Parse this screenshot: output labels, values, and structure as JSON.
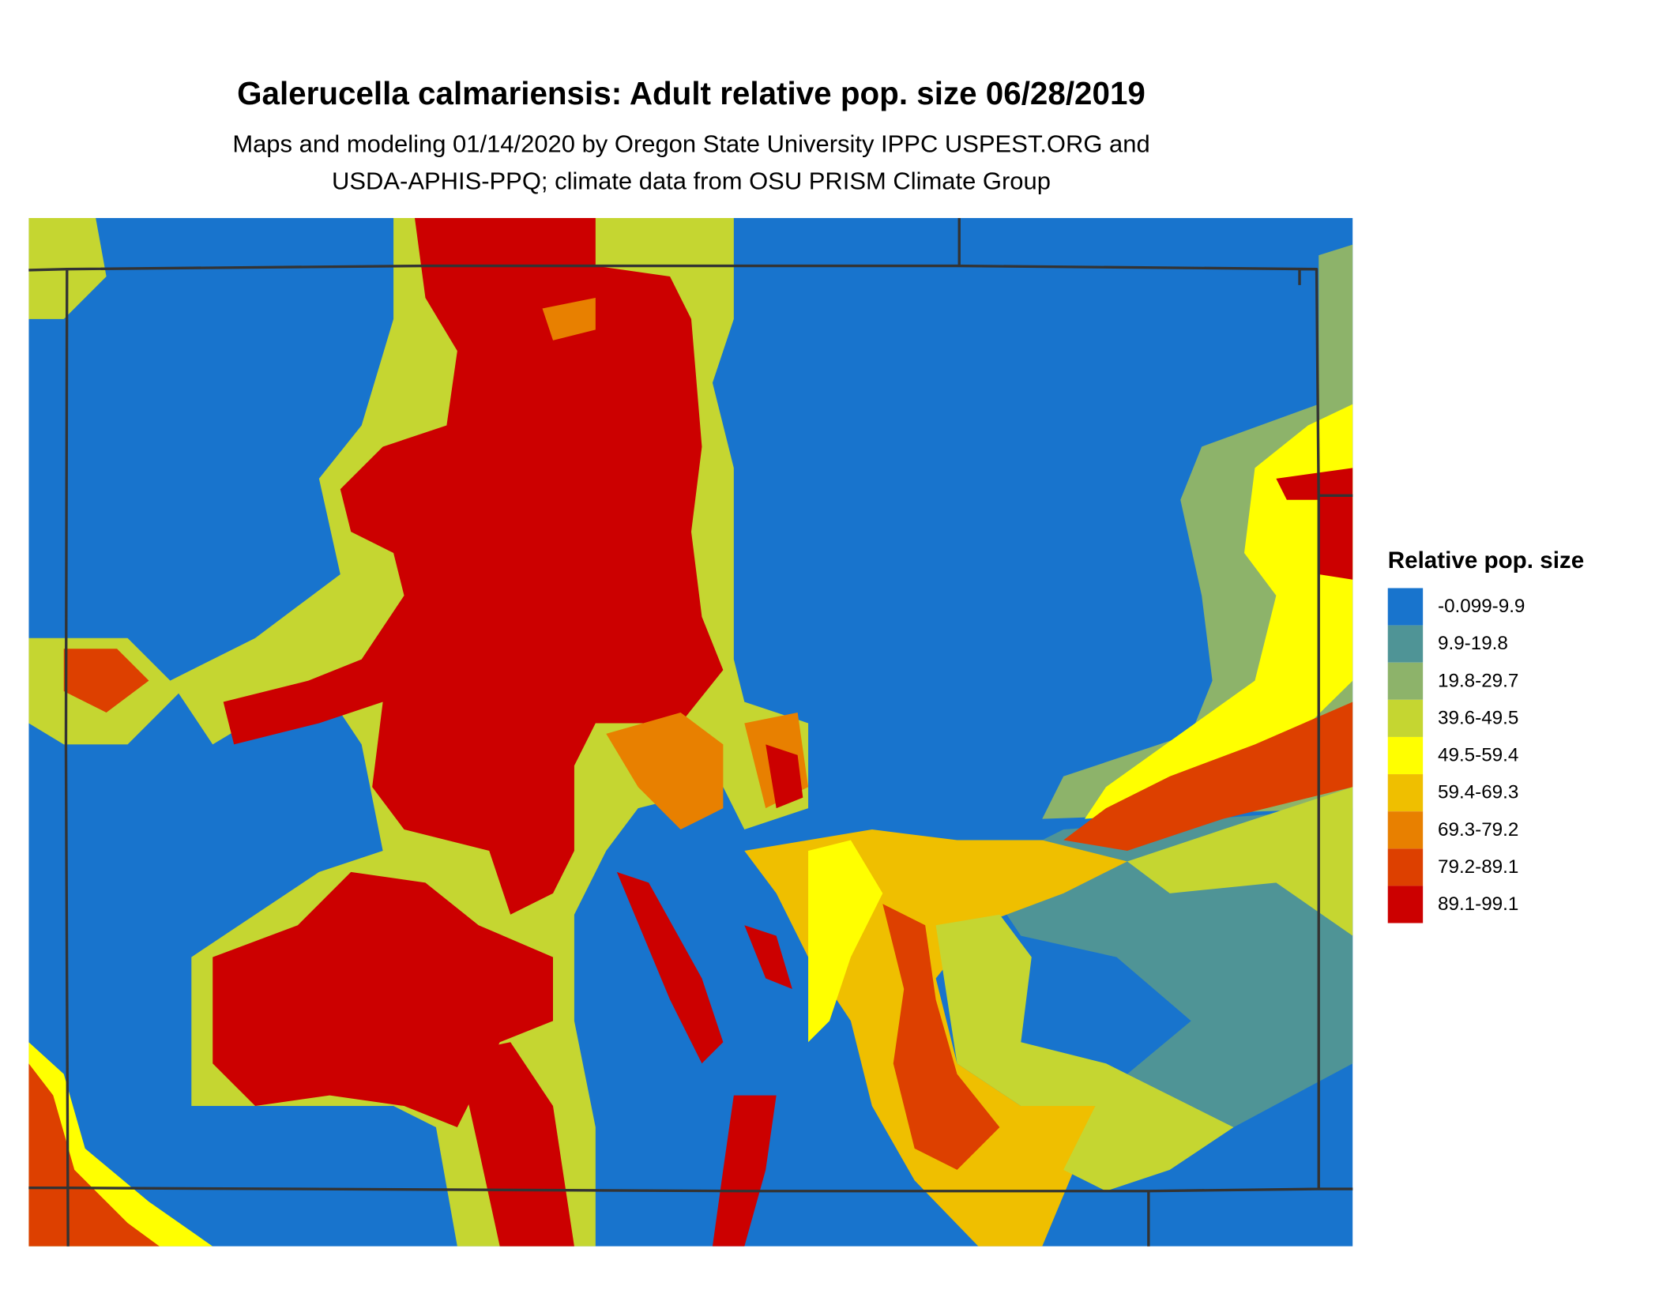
{
  "header": {
    "title": "Galerucella calmariensis: Adult relative pop. size 06/28/2019",
    "subtitle_lines": [
      "Maps and modeling 01/14/2020 by Oregon State University IPPC USPEST.ORG and",
      "USDA-APHIS-PPQ; climate data from OSU PRISM Climate Group"
    ]
  },
  "legend": {
    "title": "Relative pop. size",
    "items": [
      {
        "label": "-0.099-9.9",
        "color": "#1874cd"
      },
      {
        "label": "9.9-19.8",
        "color": "#4f9496"
      },
      {
        "label": "19.8-29.7",
        "color": "#8db36a"
      },
      {
        "label": "39.6-49.5",
        "color": "#c5d631"
      },
      {
        "label": "49.5-59.4",
        "color": "#ffff00"
      },
      {
        "label": "59.4-69.3",
        "color": "#efbf00"
      },
      {
        "label": "69.3-79.2",
        "color": "#e88000"
      },
      {
        "label": "79.2-89.1",
        "color": "#dd4000"
      },
      {
        "label": "89.1-99.1",
        "color": "#cc0000"
      }
    ]
  }
}
